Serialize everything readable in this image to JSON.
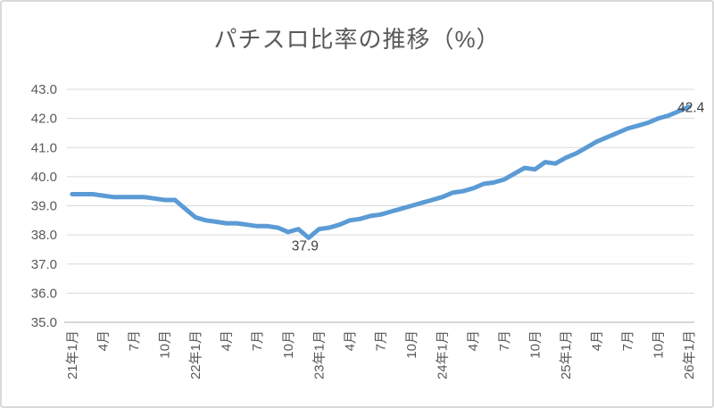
{
  "chart_data": {
    "type": "line",
    "title": "パチスロ比率の推移（%）",
    "legend": "none",
    "grid": "horizontal",
    "y_axis": {
      "tick_labels": [
        "43.0",
        "42.0",
        "41.0",
        "40.0",
        "39.0",
        "38.0",
        "37.0",
        "36.0",
        "35.0"
      ],
      "min": 35.0,
      "max": 43.0,
      "interval": 1.0
    },
    "x_axis": {
      "tick_labels": [
        "21年1月",
        "4月",
        "7月",
        "10月",
        "22年1月",
        "4月",
        "7月",
        "10月",
        "23年1月",
        "4月",
        "7月",
        "10月",
        "24年1月",
        "4月",
        "7月",
        "10月",
        "25年1月",
        "4月",
        "7月",
        "10月",
        "26年1月"
      ],
      "tick_every_n_points": 3,
      "frequency": "monthly"
    },
    "values": [
      39.4,
      39.4,
      39.4,
      39.35,
      39.3,
      39.3,
      39.3,
      39.3,
      39.25,
      39.2,
      39.2,
      38.9,
      38.6,
      38.5,
      38.45,
      38.4,
      38.4,
      38.35,
      38.3,
      38.3,
      38.25,
      38.1,
      38.2,
      37.9,
      38.2,
      38.25,
      38.35,
      38.5,
      38.55,
      38.65,
      38.7,
      38.8,
      38.9,
      39.0,
      39.1,
      39.2,
      39.3,
      39.45,
      39.5,
      39.6,
      39.75,
      39.8,
      39.9,
      40.1,
      40.3,
      40.25,
      40.5,
      40.45,
      40.65,
      40.8,
      41.0,
      41.2,
      41.35,
      41.5,
      41.65,
      41.75,
      41.85,
      42.0,
      42.1,
      42.25,
      42.4
    ],
    "annotations": [
      {
        "point_index": 23,
        "label": "37.9",
        "placement": "below"
      },
      {
        "point_index": 60,
        "label": "42.4",
        "placement": "end"
      }
    ]
  },
  "colors": {
    "line": "#5B9BD5",
    "gridline": "#D9D9D9",
    "axis_line": "#BFBFBF",
    "tick_text": "#595959",
    "title_text": "#595959",
    "data_label_text": "#404040",
    "background": "#FFFFFF",
    "border": "#D9D9D9"
  }
}
